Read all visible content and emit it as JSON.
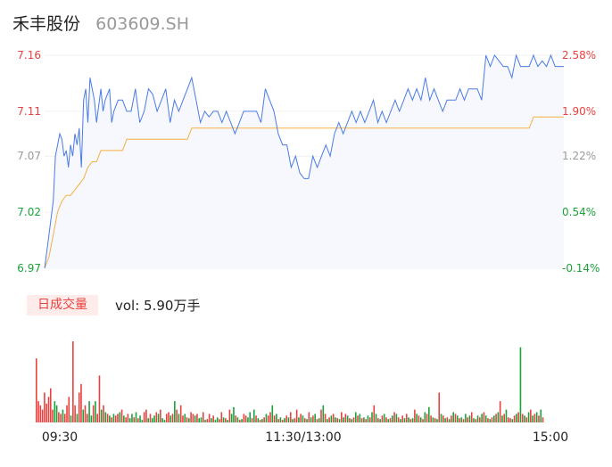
{
  "header": {
    "name": "禾丰股份",
    "code": "603609.SH"
  },
  "volume_panel": {
    "tag": "日成交量",
    "summary": "vol: 5.90万手"
  },
  "colors": {
    "price_line": "#4b7be5",
    "avg_line": "#f5b041",
    "up": "#e8413f",
    "down": "#1aa33a",
    "neutral": "#999999",
    "area_fill": "#f7f8fd"
  },
  "chart_data": [
    {
      "type": "line",
      "title": "",
      "xlabel": "",
      "ylabel": "",
      "x_ticks": [
        "09:30",
        "11:30/13:00",
        "15:00"
      ],
      "x_range_minutes": [
        0,
        240
      ],
      "ylim": [
        6.97,
        7.16
      ],
      "y_ticks_left": [
        "7.16",
        "7.11",
        "7.07",
        "7.02",
        "6.97"
      ],
      "y_ticks_right": [
        "2.58%",
        "1.90%",
        "1.22%",
        "0.54%",
        "-0.14%"
      ],
      "y_tick_values": [
        7.16,
        7.11,
        7.07,
        7.02,
        6.97
      ],
      "series": [
        {
          "key": "price",
          "x": [
            0,
            2,
            4,
            5,
            7,
            8,
            9,
            10,
            11,
            12,
            13,
            14,
            15,
            16,
            17,
            18,
            19,
            20,
            21,
            23,
            24,
            26,
            27,
            28,
            30,
            31,
            32,
            34,
            36,
            38,
            40,
            42,
            44,
            46,
            48,
            50,
            52,
            54,
            56,
            58,
            60,
            62,
            64,
            66,
            68,
            70,
            72,
            74,
            76,
            78,
            80,
            82,
            84,
            86,
            88,
            90,
            92,
            94,
            96,
            98,
            100,
            102,
            104,
            106,
            108,
            110,
            112,
            114,
            116,
            118,
            120,
            122,
            124,
            126,
            128,
            130,
            132,
            134,
            136,
            138,
            140,
            142,
            144,
            146,
            148,
            150,
            152,
            154,
            156,
            158,
            160,
            162,
            164,
            166,
            168,
            170,
            172,
            174,
            176,
            178,
            180,
            182,
            184,
            186,
            188,
            190,
            192,
            194,
            196,
            198,
            200,
            202,
            204,
            206,
            208,
            210,
            212,
            214,
            216,
            218,
            220,
            222,
            224,
            226,
            228,
            230,
            232,
            234,
            236,
            238,
            240
          ],
          "values": [
            6.97,
            7.0,
            7.03,
            7.07,
            7.09,
            7.085,
            7.07,
            7.075,
            7.06,
            7.08,
            7.07,
            7.09,
            7.08,
            7.095,
            7.06,
            7.12,
            7.13,
            7.1,
            7.14,
            7.12,
            7.1,
            7.13,
            7.11,
            7.12,
            7.13,
            7.1,
            7.11,
            7.12,
            7.12,
            7.11,
            7.11,
            7.13,
            7.1,
            7.11,
            7.13,
            7.125,
            7.11,
            7.12,
            7.13,
            7.1,
            7.12,
            7.11,
            7.12,
            7.13,
            7.14,
            7.12,
            7.1,
            7.11,
            7.105,
            7.11,
            7.11,
            7.1,
            7.11,
            7.1,
            7.09,
            7.1,
            7.11,
            7.11,
            7.11,
            7.11,
            7.1,
            7.13,
            7.12,
            7.11,
            7.09,
            7.08,
            7.08,
            7.06,
            7.07,
            7.055,
            7.05,
            7.05,
            7.07,
            7.06,
            7.07,
            7.08,
            7.07,
            7.09,
            7.1,
            7.09,
            7.1,
            7.11,
            7.1,
            7.11,
            7.1,
            7.11,
            7.12,
            7.1,
            7.11,
            7.1,
            7.11,
            7.12,
            7.11,
            7.12,
            7.13,
            7.12,
            7.13,
            7.12,
            7.14,
            7.12,
            7.13,
            7.12,
            7.11,
            7.12,
            7.12,
            7.12,
            7.13,
            7.12,
            7.13,
            7.13,
            7.13,
            7.12,
            7.16,
            7.15,
            7.16,
            7.155,
            7.15,
            7.15,
            7.14,
            7.16,
            7.15,
            7.15,
            7.15,
            7.16,
            7.15,
            7.155,
            7.15,
            7.16,
            7.15,
            7.15,
            7.15
          ]
        },
        {
          "key": "avg",
          "x": [
            0,
            2,
            4,
            6,
            8,
            10,
            12,
            14,
            16,
            18,
            20,
            22,
            24,
            26,
            28,
            30,
            32,
            34,
            36,
            38,
            40,
            42,
            44,
            46,
            48,
            50,
            52,
            54,
            56,
            58,
            60,
            62,
            64,
            66,
            68,
            70,
            72,
            74,
            76,
            78,
            80,
            82,
            84,
            86,
            88,
            90,
            92,
            94,
            96,
            98,
            100,
            102,
            104,
            106,
            108,
            110,
            112,
            114,
            116,
            118,
            120,
            122,
            124,
            126,
            128,
            130,
            132,
            134,
            136,
            138,
            140,
            142,
            144,
            146,
            148,
            150,
            152,
            154,
            156,
            158,
            160,
            162,
            164,
            166,
            168,
            170,
            172,
            174,
            176,
            178,
            180,
            182,
            184,
            186,
            188,
            190,
            192,
            194,
            196,
            198,
            200,
            202,
            204,
            206,
            208,
            210,
            212,
            214,
            216,
            218,
            220,
            222,
            224,
            226,
            228,
            230,
            232,
            234,
            236,
            238,
            240
          ],
          "values": [
            6.97,
            6.98,
            7.0,
            7.02,
            7.03,
            7.035,
            7.035,
            7.04,
            7.045,
            7.05,
            7.06,
            7.065,
            7.065,
            7.075,
            7.075,
            7.075,
            7.075,
            7.075,
            7.075,
            7.085,
            7.085,
            7.085,
            7.085,
            7.085,
            7.085,
            7.085,
            7.085,
            7.085,
            7.085,
            7.085,
            7.085,
            7.085,
            7.085,
            7.085,
            7.095,
            7.095,
            7.095,
            7.095,
            7.095,
            7.095,
            7.095,
            7.095,
            7.095,
            7.095,
            7.095,
            7.095,
            7.095,
            7.095,
            7.095,
            7.095,
            7.095,
            7.095,
            7.095,
            7.095,
            7.095,
            7.095,
            7.095,
            7.095,
            7.095,
            7.095,
            7.095,
            7.095,
            7.095,
            7.095,
            7.095,
            7.095,
            7.095,
            7.095,
            7.095,
            7.095,
            7.095,
            7.095,
            7.095,
            7.095,
            7.095,
            7.095,
            7.095,
            7.095,
            7.095,
            7.095,
            7.095,
            7.095,
            7.095,
            7.095,
            7.095,
            7.095,
            7.095,
            7.095,
            7.095,
            7.095,
            7.095,
            7.095,
            7.095,
            7.095,
            7.095,
            7.095,
            7.095,
            7.095,
            7.095,
            7.095,
            7.095,
            7.095,
            7.095,
            7.095,
            7.095,
            7.095,
            7.095,
            7.095,
            7.095,
            7.095,
            7.095,
            7.095,
            7.095,
            7.105,
            7.105,
            7.105,
            7.105,
            7.105,
            7.105,
            7.105,
            7.105
          ]
        }
      ]
    },
    {
      "type": "bar",
      "title": "",
      "xlabel": "",
      "ylabel": "",
      "x_range_minutes": [
        0,
        240
      ],
      "ylim": [
        0,
        95
      ],
      "values": [
        75,
        25,
        20,
        15,
        35,
        22,
        30,
        40,
        15,
        25,
        20,
        12,
        10,
        15,
        10,
        20,
        30,
        8,
        95,
        20,
        10,
        35,
        45,
        15,
        20,
        10,
        25,
        8,
        20,
        25,
        10,
        55,
        15,
        20,
        12,
        10,
        8,
        6,
        10,
        8,
        10,
        12,
        15,
        8,
        6,
        10,
        5,
        10,
        6,
        12,
        5,
        8,
        3,
        12,
        15,
        5,
        10,
        5,
        8,
        12,
        10,
        15,
        5,
        3,
        10,
        12,
        8,
        10,
        25,
        15,
        10,
        20,
        8,
        10,
        6,
        5,
        12,
        10,
        8,
        10,
        5,
        6,
        12,
        3,
        4,
        10,
        5,
        8,
        3,
        6,
        4,
        12,
        6,
        5,
        3,
        15,
        10,
        18,
        8,
        6,
        3,
        4,
        10,
        8,
        6,
        12,
        5,
        15,
        8,
        5,
        3,
        4,
        6,
        10,
        8,
        12,
        20,
        8,
        10,
        4,
        6,
        3,
        5,
        8,
        6,
        12,
        4,
        5,
        15,
        6,
        10,
        8,
        5,
        4,
        12,
        6,
        8,
        10,
        4,
        5,
        15,
        20,
        10,
        4,
        6,
        8,
        10,
        6,
        5,
        4,
        12,
        6,
        10,
        8,
        5,
        4,
        6,
        12,
        8,
        10,
        5,
        6,
        4,
        8,
        6,
        12,
        20,
        10,
        5,
        4,
        8,
        10,
        6,
        4,
        5,
        8,
        12,
        10,
        6,
        4,
        8,
        5,
        10,
        6,
        4,
        5,
        15,
        10,
        8,
        6,
        4,
        12,
        10,
        18,
        8,
        6,
        5,
        4,
        35,
        10,
        8,
        5,
        6,
        4,
        8,
        12,
        10,
        8,
        5,
        6,
        4,
        10,
        6,
        8,
        12,
        5,
        4,
        8,
        6,
        10,
        12,
        8,
        5,
        4,
        6,
        8,
        10,
        12,
        25,
        8,
        10,
        15,
        6,
        5,
        4,
        8,
        10,
        12,
        88,
        10,
        8,
        6,
        12,
        15,
        8,
        10,
        12,
        8,
        15,
        6
      ],
      "colors": [
        "u",
        "u",
        "u",
        "u",
        "u",
        "u",
        "u",
        "u",
        "u",
        "d",
        "d",
        "u",
        "u",
        "d",
        "u",
        "u",
        "u",
        "d",
        "u",
        "u",
        "d",
        "u",
        "u",
        "d",
        "u",
        "u",
        "d",
        "d",
        "u",
        "d",
        "u",
        "u",
        "d",
        "u",
        "d",
        "u",
        "d",
        "u",
        "d",
        "u",
        "u",
        "d",
        "u",
        "d",
        "u",
        "u",
        "d",
        "d",
        "u",
        "d",
        "u",
        "d",
        "d",
        "u",
        "u",
        "d",
        "u",
        "d",
        "d",
        "u",
        "d",
        "u",
        "d",
        "d",
        "u",
        "u",
        "d",
        "u",
        "d",
        "u",
        "d",
        "u",
        "u",
        "d",
        "u",
        "d",
        "u",
        "u",
        "d",
        "u",
        "d",
        "d",
        "u",
        "d",
        "u",
        "u",
        "d",
        "u",
        "d",
        "d",
        "u",
        "u",
        "d",
        "u",
        "d",
        "u",
        "d",
        "d",
        "u",
        "d",
        "u",
        "d",
        "u",
        "u",
        "d",
        "d",
        "u",
        "d",
        "u",
        "d",
        "u",
        "d",
        "u",
        "d",
        "u",
        "u",
        "d",
        "u",
        "d",
        "u",
        "d",
        "u",
        "d",
        "u",
        "d",
        "u",
        "d",
        "u",
        "u",
        "d",
        "u",
        "d",
        "u",
        "d",
        "u",
        "d",
        "u",
        "d",
        "u",
        "d",
        "u",
        "d",
        "u",
        "d",
        "u",
        "d",
        "u",
        "d",
        "u",
        "d",
        "u",
        "d",
        "u",
        "d",
        "u",
        "d",
        "u",
        "d",
        "u",
        "d",
        "u",
        "d",
        "u",
        "d",
        "u",
        "d",
        "u",
        "d",
        "u",
        "d",
        "u",
        "d",
        "u",
        "d",
        "u",
        "d",
        "u",
        "d",
        "u",
        "d",
        "u",
        "d",
        "u",
        "d",
        "u",
        "d",
        "u",
        "d",
        "u",
        "d",
        "u",
        "d",
        "u",
        "d",
        "u",
        "d",
        "u",
        "d",
        "u",
        "d",
        "u",
        "d",
        "u",
        "d",
        "u",
        "d",
        "u",
        "d",
        "u",
        "d",
        "u",
        "d",
        "u",
        "d",
        "u",
        "d",
        "u",
        "d",
        "u",
        "d",
        "u",
        "d",
        "u",
        "d",
        "u",
        "d",
        "u",
        "d",
        "u",
        "d",
        "u",
        "d",
        "u",
        "u",
        "d",
        "u",
        "d",
        "u",
        "d",
        "u",
        "d",
        "u",
        "d",
        "u",
        "d",
        "u",
        "d",
        "u",
        "d",
        "u",
        "d",
        "u",
        "d",
        "u",
        "d",
        "u",
        "d",
        "u",
        "d",
        "u",
        "d",
        "u",
        "d",
        "u",
        "d",
        "u",
        "d",
        "u",
        "d",
        "u",
        "d",
        "u",
        "d",
        "u",
        "d",
        "u",
        "d",
        "u",
        "d",
        "u",
        "d",
        "u",
        "d",
        "u",
        "d",
        "u",
        "d",
        "u",
        "d",
        "u",
        "d",
        "d",
        "u",
        "d"
      ]
    }
  ]
}
